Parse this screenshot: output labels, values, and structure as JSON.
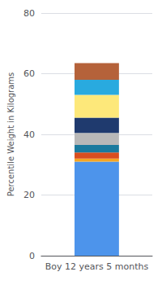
{
  "chart_data": {
    "type": "bar",
    "stacked": true,
    "categories": [
      "Boy 12 years 5 months"
    ],
    "ylabel": "Percentile Weight in Kilograms",
    "series": [
      {
        "color": "#4d94eb",
        "values": [
          31.0
        ]
      },
      {
        "color": "#f5a623",
        "values": [
          1.0
        ]
      },
      {
        "color": "#d94e1f",
        "values": [
          2.0
        ]
      },
      {
        "color": "#1a7a9e",
        "values": [
          2.5
        ]
      },
      {
        "color": "#b8b8b8",
        "values": [
          4.0
        ]
      },
      {
        "color": "#1f3a6e",
        "values": [
          5.0
        ]
      },
      {
        "color": "#fde87a",
        "values": [
          7.5
        ]
      },
      {
        "color": "#29aadf",
        "values": [
          5.0
        ]
      },
      {
        "color": "#b5623a",
        "values": [
          5.5
        ]
      }
    ],
    "ylim": [
      0,
      80
    ],
    "yticks": [
      0,
      20,
      40,
      60,
      80
    ],
    "grid": true
  }
}
